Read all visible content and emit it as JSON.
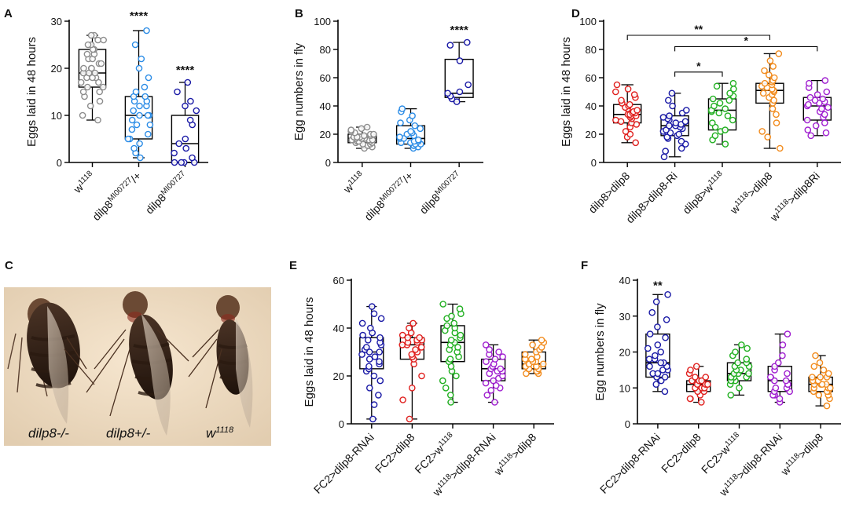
{
  "figure": {
    "panel_c": {
      "letter": "C",
      "labels": [
        "dilp8-/-",
        "dilp8+/-",
        "w1118"
      ],
      "label_parts": [
        {
          "base": "dilp8-/-",
          "sup": ""
        },
        {
          "base": "dilp8+/-",
          "sup": ""
        },
        {
          "base": "w",
          "sup": "1118"
        }
      ]
    }
  },
  "chart_data": [
    {
      "id": "A",
      "type": "box+scatter",
      "ylabel": "Eggs laid in 48 hours",
      "ylim": [
        0,
        30
      ],
      "yticks": [
        0,
        10,
        20,
        30
      ],
      "categories": [
        {
          "base": "w",
          "sup": "1118"
        },
        {
          "base": "dilp8",
          "sup": "MI00727",
          "suffix": "/+"
        },
        {
          "base": "dilp8",
          "sup": "MI00727"
        }
      ],
      "series": [
        {
          "color": "#8c8c8c",
          "min": 9,
          "q1": 16,
          "median": 19,
          "q3": 24,
          "max": 27,
          "points": [
            9,
            10,
            12,
            13,
            14,
            15,
            15,
            16,
            16,
            17,
            17,
            18,
            18,
            18,
            19,
            19,
            19,
            20,
            20,
            20,
            21,
            21,
            22,
            22,
            23,
            23,
            24,
            24,
            25,
            25,
            26,
            26,
            27,
            27
          ]
        },
        {
          "color": "#2b8ce6",
          "min": 1,
          "q1": 5,
          "median": 10,
          "q3": 14,
          "max": 28,
          "points": [
            1,
            2,
            3,
            4,
            5,
            5,
            6,
            7,
            8,
            8,
            9,
            10,
            10,
            10,
            11,
            12,
            12,
            13,
            13,
            14,
            14,
            15,
            16,
            18,
            20,
            22,
            25,
            28
          ]
        },
        {
          "color": "#1a1aa6",
          "min": 0,
          "q1": 0,
          "median": 4,
          "q3": 10,
          "max": 17,
          "points": [
            0,
            0,
            0,
            0,
            1,
            2,
            3,
            4,
            5,
            8,
            9,
            11,
            12,
            13,
            15,
            17
          ]
        }
      ],
      "annotations": [
        {
          "category": 1,
          "text": "****",
          "y": 30
        },
        {
          "category": 2,
          "text": "****",
          "y": 18.5
        }
      ],
      "brackets": []
    },
    {
      "id": "B",
      "type": "box+scatter",
      "ylabel": "Egg numbers  in fly",
      "ylim": [
        0,
        100
      ],
      "yticks": [
        0,
        20,
        40,
        60,
        80,
        100
      ],
      "categories": [
        {
          "base": "w",
          "sup": "1118"
        },
        {
          "base": "dilp8",
          "sup": "MI00727",
          "suffix": "/+"
        },
        {
          "base": "dilp8",
          "sup": "MI00727"
        }
      ],
      "series": [
        {
          "color": "#8c8c8c",
          "min": 10,
          "q1": 14,
          "median": 17,
          "q3": 20,
          "max": 25,
          "points": [
            10,
            11,
            12,
            12,
            13,
            13,
            14,
            14,
            15,
            15,
            15,
            16,
            16,
            16,
            17,
            17,
            17,
            18,
            18,
            18,
            19,
            19,
            20,
            20,
            21,
            22,
            23,
            24,
            25
          ]
        },
        {
          "color": "#2b8ce6",
          "min": 10,
          "q1": 13,
          "median": 17,
          "q3": 26,
          "max": 38,
          "points": [
            10,
            11,
            12,
            12,
            13,
            13,
            14,
            14,
            15,
            15,
            16,
            17,
            17,
            18,
            19,
            20,
            21,
            22,
            24,
            26,
            28,
            30,
            33,
            36,
            38
          ]
        },
        {
          "color": "#1a1aa6",
          "min": 43,
          "q1": 46,
          "median": 49,
          "q3": 73,
          "max": 85,
          "points": [
            43,
            45,
            47,
            49,
            50,
            55,
            72,
            83,
            85
          ]
        }
      ],
      "annotations": [
        {
          "category": 2,
          "text": "****",
          "y": 90
        }
      ],
      "brackets": []
    },
    {
      "id": "D",
      "type": "box+scatter",
      "ylabel": "Eggs laid in 48 hours",
      "ylim": [
        0,
        100
      ],
      "yticks": [
        0,
        20,
        40,
        60,
        80,
        100
      ],
      "categories": [
        {
          "base": "dilp8>dilp8",
          "sup": ""
        },
        {
          "base": "dilp8>dilp8-Ri",
          "sup": ""
        },
        {
          "base": "dilp8>w",
          "sup": "1118"
        },
        {
          "base": "w",
          "sup": "1118",
          "suffix": ">dilp8"
        },
        {
          "base": "w",
          "sup": "1118",
          "suffix": ">dilp8Ri"
        }
      ],
      "series": [
        {
          "color": "#e0201e",
          "min": 14,
          "q1": 28,
          "median": 34,
          "q3": 41,
          "max": 55,
          "points": [
            14,
            18,
            20,
            22,
            25,
            27,
            28,
            29,
            30,
            31,
            32,
            33,
            33,
            34,
            34,
            35,
            35,
            36,
            37,
            38,
            39,
            40,
            41,
            42,
            44,
            46,
            48,
            50,
            52,
            55
          ]
        },
        {
          "color": "#1a1aa6",
          "min": 4,
          "q1": 19,
          "median": 26,
          "q3": 33,
          "max": 49,
          "points": [
            4,
            8,
            10,
            13,
            15,
            17,
            18,
            19,
            20,
            21,
            22,
            23,
            24,
            25,
            26,
            26,
            27,
            28,
            29,
            30,
            31,
            32,
            33,
            35,
            37,
            40,
            44,
            49
          ]
        },
        {
          "color": "#22b022",
          "min": 13,
          "q1": 23,
          "median": 37,
          "q3": 45,
          "max": 56,
          "points": [
            13,
            16,
            19,
            22,
            23,
            25,
            28,
            30,
            33,
            35,
            36,
            37,
            38,
            40,
            42,
            44,
            45,
            47,
            49,
            52,
            54,
            56
          ]
        },
        {
          "color": "#f28c1e",
          "min": 10,
          "q1": 42,
          "median": 51,
          "q3": 56,
          "max": 77,
          "points": [
            10,
            18,
            22,
            28,
            34,
            38,
            42,
            44,
            46,
            48,
            49,
            50,
            51,
            52,
            53,
            54,
            55,
            56,
            57,
            58,
            60,
            62,
            65,
            68,
            72,
            77
          ]
        },
        {
          "color": "#a020d0",
          "min": 19,
          "q1": 30,
          "median": 40,
          "q3": 46,
          "max": 58,
          "points": [
            19,
            21,
            23,
            26,
            28,
            30,
            32,
            34,
            36,
            38,
            39,
            40,
            41,
            42,
            43,
            44,
            45,
            46,
            48,
            50,
            53,
            56,
            58
          ]
        }
      ],
      "annotations": [],
      "brackets": [
        {
          "from": 0,
          "to": 3,
          "y": 90,
          "text": "**"
        },
        {
          "from": 1,
          "to": 4,
          "y": 82,
          "text": "*"
        },
        {
          "from": 1,
          "to": 2,
          "y": 64,
          "text": "*"
        }
      ]
    },
    {
      "id": "E",
      "type": "box+scatter",
      "ylabel": "Eggs laid in 48 hours",
      "ylim": [
        0,
        60
      ],
      "yticks": [
        0,
        20,
        40,
        60
      ],
      "categories": [
        {
          "base": "FC2>dilp8-RNAi",
          "sup": ""
        },
        {
          "base": "FC2>dilp8",
          "sup": ""
        },
        {
          "base": "FC2>w",
          "sup": "1118"
        },
        {
          "base": "w",
          "sup": "1118",
          "suffix": ">dilp8-RNAi"
        },
        {
          "base": "w",
          "sup": "1118",
          "suffix": ">dilp8"
        }
      ],
      "series": [
        {
          "color": "#1a1aa6",
          "min": 2,
          "q1": 23,
          "median": 30,
          "q3": 36,
          "max": 49,
          "points": [
            2,
            8,
            12,
            15,
            18,
            20,
            22,
            23,
            24,
            25,
            26,
            27,
            28,
            29,
            30,
            30,
            31,
            32,
            33,
            34,
            35,
            36,
            37,
            38,
            40,
            42,
            44,
            46,
            49
          ]
        },
        {
          "color": "#e0201e",
          "min": 2,
          "q1": 27,
          "median": 33,
          "q3": 36,
          "max": 42,
          "points": [
            2,
            10,
            15,
            20,
            25,
            27,
            28,
            29,
            30,
            31,
            32,
            33,
            33,
            34,
            34,
            35,
            35,
            36,
            36,
            37,
            38,
            40,
            42
          ]
        },
        {
          "color": "#22b022",
          "min": 9,
          "q1": 26,
          "median": 34,
          "q3": 41,
          "max": 50,
          "points": [
            9,
            12,
            15,
            18,
            20,
            22,
            24,
            26,
            27,
            28,
            30,
            31,
            32,
            33,
            34,
            35,
            36,
            37,
            38,
            39,
            40,
            41,
            42,
            44,
            45,
            46,
            48,
            50
          ]
        },
        {
          "color": "#a020d0",
          "min": 9,
          "q1": 18,
          "median": 23,
          "q3": 27,
          "max": 33,
          "points": [
            9,
            12,
            14,
            15,
            16,
            17,
            18,
            19,
            20,
            21,
            22,
            22,
            23,
            23,
            24,
            25,
            26,
            27,
            28,
            29,
            30,
            31,
            33
          ]
        },
        {
          "color": "#f28c1e",
          "min": 21,
          "q1": 23,
          "median": 25,
          "q3": 30,
          "max": 35,
          "points": [
            21,
            21,
            22,
            22,
            23,
            23,
            23,
            24,
            24,
            24,
            25,
            25,
            25,
            26,
            26,
            27,
            27,
            28,
            29,
            30,
            31,
            32,
            33,
            34,
            35
          ]
        }
      ],
      "annotations": [],
      "brackets": []
    },
    {
      "id": "F",
      "type": "box+scatter",
      "ylabel": "Egg numbers  in fly",
      "ylim": [
        0,
        40
      ],
      "yticks": [
        0,
        10,
        20,
        30,
        40
      ],
      "categories": [
        {
          "base": "FC2>dilp8-RNAi",
          "sup": ""
        },
        {
          "base": "FC2>dilp8",
          "sup": ""
        },
        {
          "base": "FC2>w",
          "sup": "1118"
        },
        {
          "base": "w",
          "sup": "1118",
          "suffix": ">dilp8-RNAi"
        },
        {
          "base": "w",
          "sup": "1118",
          "suffix": ">dilp8"
        }
      ],
      "series": [
        {
          "color": "#1a1aa6",
          "min": 9,
          "q1": 13,
          "median": 17,
          "q3": 25,
          "max": 36,
          "points": [
            9,
            11,
            12,
            13,
            13,
            14,
            14,
            15,
            15,
            16,
            16,
            17,
            17,
            18,
            18,
            19,
            20,
            21,
            22,
            24,
            25,
            27,
            29,
            31,
            34,
            36
          ]
        },
        {
          "color": "#e0201e",
          "min": 6,
          "q1": 9,
          "median": 11,
          "q3": 12,
          "max": 16,
          "points": [
            6,
            7,
            7,
            8,
            9,
            9,
            10,
            10,
            10,
            11,
            11,
            11,
            11,
            12,
            12,
            12,
            13,
            13,
            14,
            15,
            16
          ]
        },
        {
          "color": "#22b022",
          "min": 8,
          "q1": 12,
          "median": 14,
          "q3": 17,
          "max": 22,
          "points": [
            8,
            10,
            11,
            12,
            12,
            13,
            13,
            13,
            14,
            14,
            14,
            15,
            15,
            16,
            16,
            17,
            17,
            18,
            19,
            20,
            21,
            22
          ]
        },
        {
          "color": "#a020d0",
          "min": 6,
          "q1": 9,
          "median": 12,
          "q3": 16,
          "max": 25,
          "points": [
            6,
            7,
            8,
            8,
            9,
            9,
            10,
            10,
            11,
            11,
            12,
            12,
            13,
            13,
            14,
            15,
            16,
            17,
            19,
            22,
            25
          ]
        },
        {
          "color": "#f28c1e",
          "min": 5,
          "q1": 9,
          "median": 11,
          "q3": 13,
          "max": 19,
          "points": [
            5,
            7,
            8,
            8,
            9,
            9,
            9,
            10,
            10,
            10,
            11,
            11,
            11,
            11,
            12,
            12,
            12,
            13,
            13,
            13,
            14,
            15,
            16,
            17,
            19
          ]
        }
      ],
      "annotations": [
        {
          "category": 0,
          "text": "**",
          "y": 37
        }
      ],
      "brackets": []
    }
  ]
}
